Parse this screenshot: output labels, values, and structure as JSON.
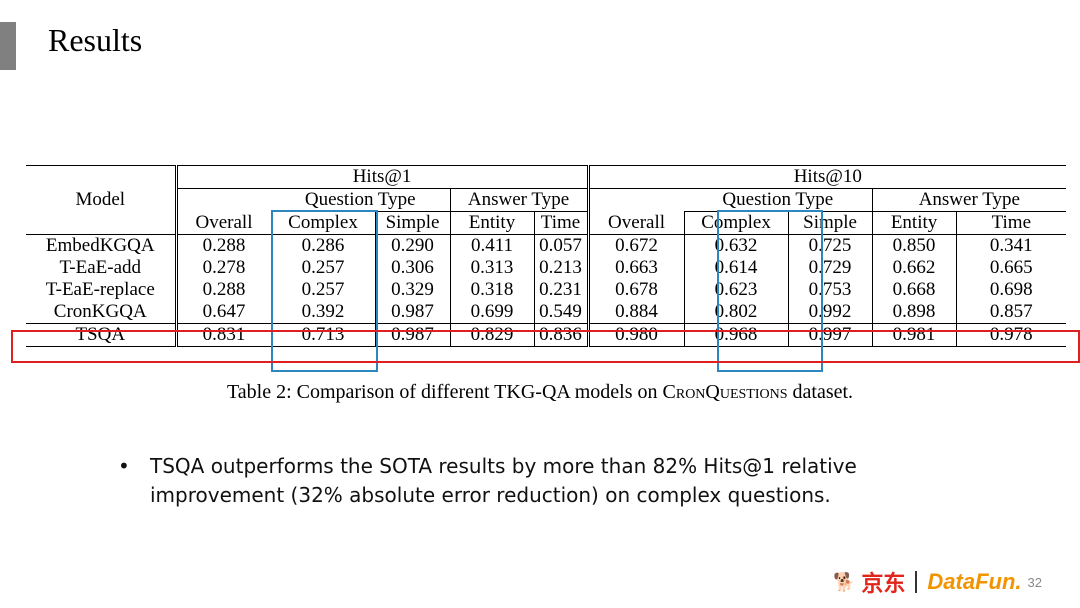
{
  "slide": {
    "title": "Results",
    "page_number": "32"
  },
  "table": {
    "group_headers": [
      "Hits@1",
      "Hits@10"
    ],
    "sub_headers": [
      "Question Type",
      "Answer Type"
    ],
    "model_header": "Model",
    "column_headers": [
      "Overall",
      "Complex",
      "Simple",
      "Entity",
      "Time"
    ],
    "rows": [
      {
        "model": "EmbedKGQA",
        "values": [
          "0.288",
          "0.286",
          "0.290",
          "0.411",
          "0.057",
          "0.672",
          "0.632",
          "0.725",
          "0.850",
          "0.341"
        ]
      },
      {
        "model": "T-EaE-add",
        "values": [
          "0.278",
          "0.257",
          "0.306",
          "0.313",
          "0.213",
          "0.663",
          "0.614",
          "0.729",
          "0.662",
          "0.665"
        ]
      },
      {
        "model": "T-EaE-replace",
        "values": [
          "0.288",
          "0.257",
          "0.329",
          "0.318",
          "0.231",
          "0.678",
          "0.623",
          "0.753",
          "0.668",
          "0.698"
        ]
      },
      {
        "model": "CronKGQA",
        "values": [
          "0.647",
          "0.392",
          "0.987",
          "0.699",
          "0.549",
          "0.884",
          "0.802",
          "0.992",
          "0.898",
          "0.857"
        ]
      },
      {
        "model": "TSQA",
        "values": [
          "0.831",
          "0.713",
          "0.987",
          "0.829",
          "0.836",
          "0.980",
          "0.968",
          "0.997",
          "0.981",
          "0.978"
        ]
      }
    ],
    "caption_prefix": "Table 2: Comparison of different TKG-QA models on ",
    "caption_dataset": "CronQuestions",
    "caption_suffix": " dataset."
  },
  "bullets": [
    "TSQA outperforms the SOTA results by more than 82% Hits@1 relative improvement (32% absolute error reduction) on complex questions."
  ],
  "footer": {
    "logo_jd_text": "京东",
    "logo_datafun_text": "DataFun."
  },
  "colors": {
    "highlight_blue": "#2e86c1",
    "highlight_red": "#e02020",
    "accent_bar": "#808080"
  }
}
